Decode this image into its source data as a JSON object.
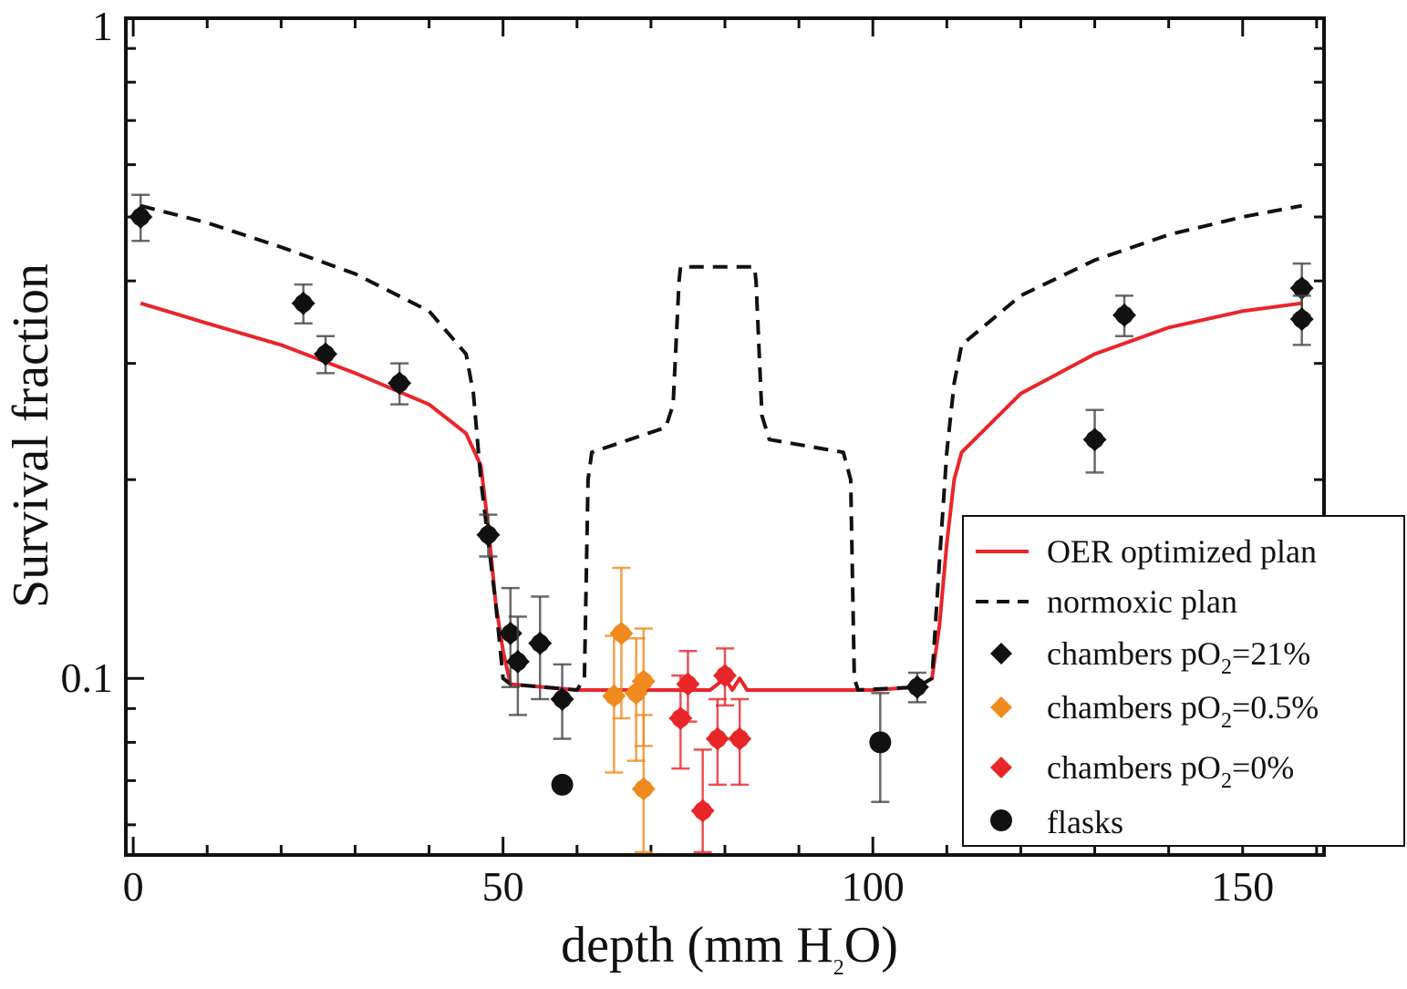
{
  "chart_data": {
    "type": "scatter",
    "xlabel": "depth (mm H",
    "xlabel_sub": "2",
    "xlabel_tail": "O)",
    "ylabel": "Survival fraction",
    "x_scale": "linear",
    "y_scale": "log",
    "xlim": [
      -1,
      161
    ],
    "ylim": [
      0.054,
      1.0
    ],
    "x_ticks": [
      0,
      50,
      100,
      150
    ],
    "x_tick_labels": [
      "0",
      "50",
      "100",
      "150"
    ],
    "y_ticks": [
      0.1,
      1
    ],
    "y_tick_labels": [
      "0.1",
      "1"
    ],
    "grid": false,
    "legend_position": "bottom-right",
    "colors": {
      "red": "#e8262a",
      "orange": "#ef8a1f",
      "black": "#111111",
      "errorbar": "#444444"
    },
    "legend": {
      "oer_line": "OER optimized plan",
      "normoxic_line": "normoxic plan",
      "ch21_prefix": "chambers pO",
      "ch21_sub": "2",
      "ch21_suffix": "=21%",
      "ch05_prefix": "chambers pO",
      "ch05_sub": "2",
      "ch05_suffix": "=0.5%",
      "ch0_prefix": "chambers pO",
      "ch0_sub": "2",
      "ch0_suffix": "=0%",
      "flasks": "flasks"
    },
    "lines": [
      {
        "name": "OER optimized plan",
        "style": "solid",
        "color": "#e8262a",
        "points": [
          [
            1,
            0.37
          ],
          [
            10,
            0.345
          ],
          [
            20,
            0.32
          ],
          [
            30,
            0.29
          ],
          [
            40,
            0.26
          ],
          [
            45,
            0.235
          ],
          [
            47,
            0.21
          ],
          [
            48,
            0.17
          ],
          [
            49,
            0.13
          ],
          [
            50,
            0.11
          ],
          [
            51,
            0.098
          ],
          [
            60,
            0.096
          ],
          [
            70,
            0.096
          ],
          [
            78,
            0.096
          ],
          [
            80,
            0.1
          ],
          [
            81,
            0.096
          ],
          [
            82,
            0.1
          ],
          [
            83,
            0.096
          ],
          [
            90,
            0.096
          ],
          [
            100,
            0.096
          ],
          [
            106,
            0.097
          ],
          [
            108,
            0.1
          ],
          [
            109,
            0.12
          ],
          [
            110,
            0.16
          ],
          [
            111,
            0.2
          ],
          [
            112,
            0.22
          ],
          [
            120,
            0.27
          ],
          [
            130,
            0.31
          ],
          [
            140,
            0.34
          ],
          [
            150,
            0.36
          ],
          [
            158,
            0.37
          ]
        ]
      },
      {
        "name": "normoxic plan",
        "style": "dashed",
        "color": "#111111",
        "points": [
          [
            1,
            0.52
          ],
          [
            10,
            0.49
          ],
          [
            20,
            0.45
          ],
          [
            30,
            0.41
          ],
          [
            40,
            0.36
          ],
          [
            45,
            0.31
          ],
          [
            46,
            0.27
          ],
          [
            47,
            0.2
          ],
          [
            49,
            0.13
          ],
          [
            50,
            0.1
          ],
          [
            51,
            0.098
          ],
          [
            60,
            0.096
          ],
          [
            61,
            0.1
          ],
          [
            61.5,
            0.2
          ],
          [
            62,
            0.22
          ],
          [
            72,
            0.24
          ],
          [
            73,
            0.26
          ],
          [
            73.8,
            0.4
          ],
          [
            74,
            0.42
          ],
          [
            84,
            0.42
          ],
          [
            84.2,
            0.4
          ],
          [
            85,
            0.25
          ],
          [
            86,
            0.23
          ],
          [
            96,
            0.22
          ],
          [
            97,
            0.2
          ],
          [
            97.5,
            0.1
          ],
          [
            98,
            0.096
          ],
          [
            106,
            0.097
          ],
          [
            108,
            0.1
          ],
          [
            109,
            0.15
          ],
          [
            110,
            0.22
          ],
          [
            111,
            0.28
          ],
          [
            112,
            0.32
          ],
          [
            120,
            0.38
          ],
          [
            130,
            0.43
          ],
          [
            140,
            0.47
          ],
          [
            150,
            0.5
          ],
          [
            158,
            0.52
          ]
        ]
      }
    ],
    "series": [
      {
        "name": "chambers pO2=21%",
        "marker": "diamond",
        "color": "#111111",
        "points": [
          [
            1,
            0.5,
            0.04
          ],
          [
            23,
            0.37,
            0.025
          ],
          [
            26,
            0.31,
            0.02
          ],
          [
            36,
            0.28,
            0.02
          ],
          [
            48,
            0.165,
            0.012
          ],
          [
            51,
            0.117,
            0.02
          ],
          [
            52,
            0.106,
            0.018
          ],
          [
            55,
            0.113,
            0.02
          ],
          [
            58,
            0.093,
            0.012
          ],
          [
            106,
            0.097,
            0.005
          ],
          [
            130,
            0.23,
            0.025
          ],
          [
            134,
            0.355,
            0.025
          ],
          [
            158,
            0.39,
            0.035
          ],
          [
            158,
            0.35,
            0.03
          ]
        ]
      },
      {
        "name": "chambers pO2=0.5%",
        "marker": "diamond",
        "color": "#ef8a1f",
        "points": [
          [
            66,
            0.117,
            0.03
          ],
          [
            65,
            0.094,
            0.022
          ],
          [
            68,
            0.095,
            0.02
          ],
          [
            69,
            0.099,
            0.02
          ],
          [
            69,
            0.068,
            0.02
          ]
        ]
      },
      {
        "name": "chambers pO2=0%",
        "marker": "diamond",
        "color": "#e8262a",
        "points": [
          [
            75,
            0.098,
            0.012
          ],
          [
            74,
            0.087,
            0.014
          ],
          [
            80,
            0.101,
            0.01
          ],
          [
            79,
            0.081,
            0.012
          ],
          [
            82,
            0.081,
            0.012
          ],
          [
            77,
            0.063,
            0.015
          ]
        ]
      },
      {
        "name": "flasks",
        "marker": "circle",
        "color": "#111111",
        "points": [
          [
            58,
            0.069,
            0
          ],
          [
            101,
            0.08,
            0.015
          ]
        ]
      }
    ]
  }
}
